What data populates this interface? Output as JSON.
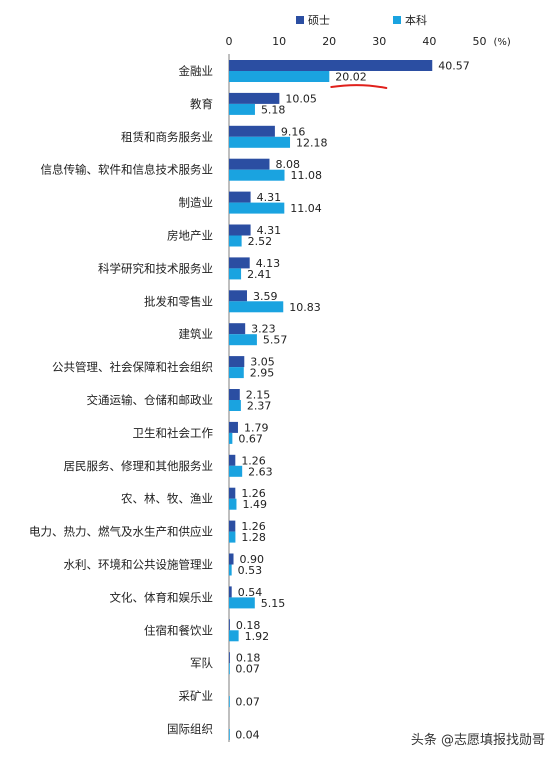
{
  "chart_data": {
    "type": "bar",
    "orientation": "horizontal",
    "unit_label": "(%)",
    "xlim": [
      0,
      50
    ],
    "x_ticks": [
      0,
      10,
      20,
      30,
      40,
      50
    ],
    "grid": false,
    "legend_position": "top",
    "categories": [
      "金融业",
      "教育",
      "租赁和商务服务业",
      "信息传输、软件和信息技术服务业",
      "制造业",
      "房地产业",
      "科学研究和技术服务业",
      "批发和零售业",
      "建筑业",
      "公共管理、社会保障和社会组织",
      "交通运输、仓储和邮政业",
      "卫生和社会工作",
      "居民服务、修理和其他服务业",
      "农、林、牧、渔业",
      "电力、热力、燃气及水生产和供应业",
      "水利、环境和公共设施管理业",
      "文化、体育和娱乐业",
      "住宿和餐饮业",
      "军队",
      "采矿业",
      "国际组织"
    ],
    "series": [
      {
        "name": "硕士",
        "color": "#2b4ea2",
        "values": [
          40.57,
          10.05,
          9.16,
          8.08,
          4.31,
          4.31,
          4.13,
          3.59,
          3.23,
          3.05,
          2.15,
          1.79,
          1.26,
          1.26,
          1.26,
          0.9,
          0.54,
          0.18,
          0.18,
          null,
          null
        ],
        "labels": [
          "40.57",
          "10.05",
          "9.16",
          "8.08",
          "4.31",
          "4.31",
          "4.13",
          "3.59",
          "3.23",
          "3.05",
          "2.15",
          "1.79",
          "1.26",
          "1.26",
          "1.26",
          "0.90",
          "0.54",
          "0.18",
          "0.18",
          null,
          null
        ]
      },
      {
        "name": "本科",
        "color": "#1aa3e0",
        "values": [
          20.02,
          5.18,
          12.18,
          11.08,
          11.04,
          2.52,
          2.41,
          10.83,
          5.57,
          2.95,
          2.37,
          0.67,
          2.63,
          1.49,
          1.28,
          0.53,
          5.15,
          1.92,
          0.07,
          0.07,
          0.04
        ],
        "labels": [
          "20.02",
          "5.18",
          "12.18",
          "11.08",
          "11.04",
          "2.52",
          "2.41",
          "10.83",
          "5.57",
          "2.95",
          "2.37",
          "0.67",
          "2.63",
          "1.49",
          "1.28",
          "0.53",
          "5.15",
          "1.92",
          "0.07",
          "0.07",
          "0.04"
        ]
      }
    ],
    "annotation": {
      "category_index": 0,
      "series_index": 1,
      "style": "red underline"
    }
  },
  "watermark": "头条 @志愿填报找勋哥"
}
